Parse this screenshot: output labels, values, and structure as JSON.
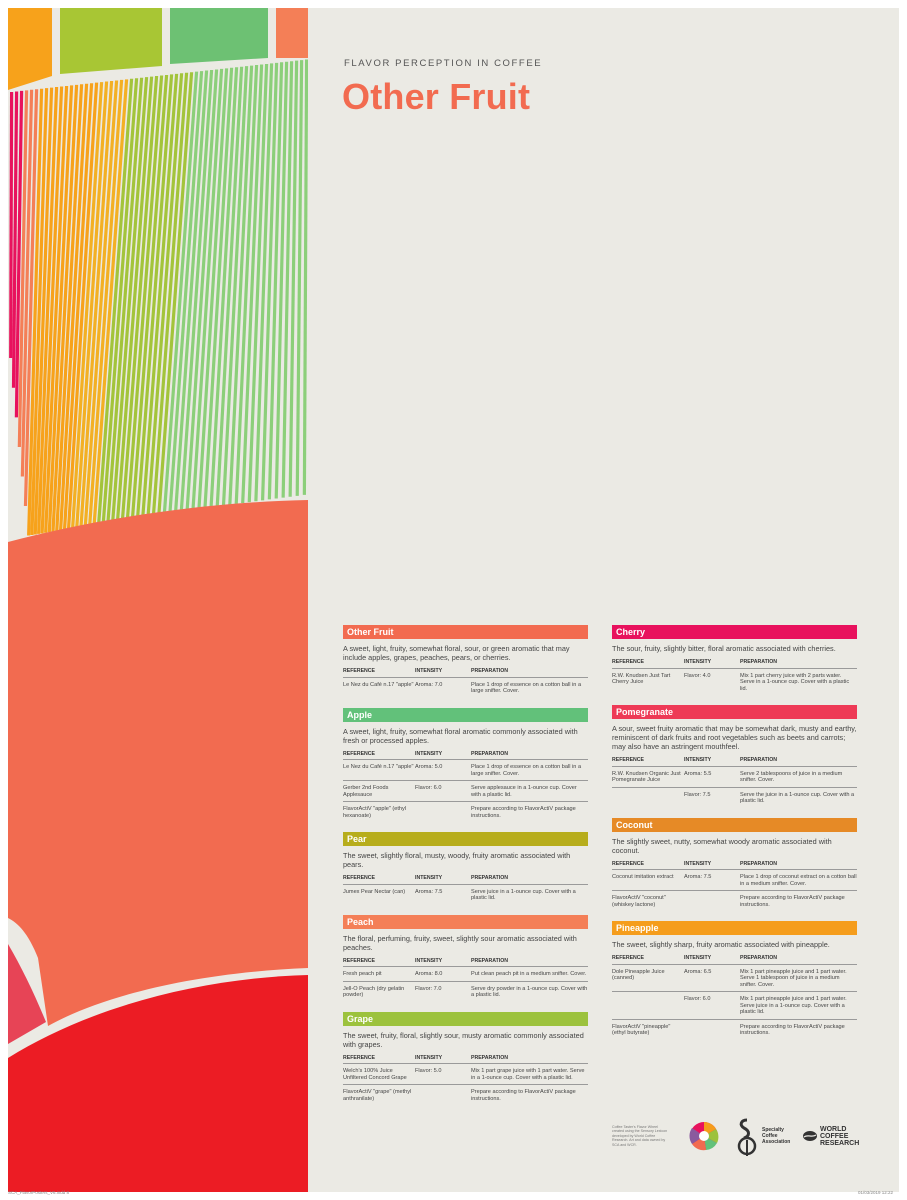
{
  "header": {
    "eyebrow": "FLAVOR PERCEPTION IN COFFEE",
    "title": "Other Fruit"
  },
  "table_headers": {
    "reference": "REFERENCE",
    "intensity": "INTENSITY",
    "preparation": "PREPARATION"
  },
  "colors": {
    "page_bg": "#ebeae4",
    "title": "#f26b50",
    "other_fruit": "#f26b50",
    "apple": "#62c17a",
    "pear": "#b7ad1c",
    "peach": "#f47f57",
    "grape": "#9cc23d",
    "cherry": "#e8125d",
    "pomegranate": "#ee3a56",
    "coconut": "#e68a26",
    "pineapple": "#f59d1c"
  },
  "left_cards": [
    {
      "name": "Other Fruit",
      "color": "#f26b50",
      "description": "A sweet, light, fruity, somewhat floral, sour, or green aromatic that may include apples, grapes, peaches, pears, or cherries.",
      "rows": [
        {
          "reference": "Le Nez du Café n.17 \"apple\"",
          "intensity": "Aroma: 7.0",
          "preparation": "Place 1 drop of essence on a cotton ball in a large snifter. Cover."
        }
      ]
    },
    {
      "name": "Apple",
      "color": "#62c17a",
      "description": "A sweet, light, fruity, somewhat floral aromatic commonly associated with fresh or processed apples.",
      "rows": [
        {
          "reference": "Le Nez du Café n.17 \"apple\"",
          "intensity": "Aroma: 5.0",
          "preparation": "Place 1 drop of essence on a cotton ball in a large snifter. Cover."
        },
        {
          "reference": "Gerber 2nd Foods Applesauce",
          "intensity": "Flavor: 6.0",
          "preparation": "Serve applesauce in a 1-ounce cup. Cover with a plastic lid."
        },
        {
          "reference": "FlavorActiV \"apple\" (ethyl hexanoate)",
          "intensity": "",
          "preparation": "Prepare according to FlavorActiV package instructions."
        }
      ]
    },
    {
      "name": "Pear",
      "color": "#b7ad1c",
      "description": "The sweet, slightly floral, musty, woody, fruity aromatic associated with pears.",
      "rows": [
        {
          "reference": "Jumex Pear Nectar (can)",
          "intensity": "Aroma: 7.5",
          "preparation": "Serve juice in a 1-ounce cup. Cover with a plastic lid."
        }
      ]
    },
    {
      "name": "Peach",
      "color": "#f47f57",
      "description": "The floral, perfuming, fruity, sweet, slightly sour aromatic associated with peaches.",
      "rows": [
        {
          "reference": "Fresh peach pit",
          "intensity": "Aroma: 8.0",
          "preparation": "Put clean peach pit in a medium snifter. Cover."
        },
        {
          "reference": "Jell-O Peach (dry gelatin powder)",
          "intensity": "Flavor: 7.0",
          "preparation": "Serve dry powder in a 1-ounce cup. Cover with a plastic lid."
        }
      ]
    },
    {
      "name": "Grape",
      "color": "#9cc23d",
      "description": "The sweet, fruity, floral, slightly sour, musty aromatic commonly associated with grapes.",
      "rows": [
        {
          "reference": "Welch's 100% Juice Unfiltered Concord Grape",
          "intensity": "Flavor: 5.0",
          "preparation": "Mix 1 part grape juice with 1 part water. Serve in a 1-ounce cup. Cover with a plastic lid."
        },
        {
          "reference": "FlavorActiV \"grape\" (methyl anthranilate)",
          "intensity": "",
          "preparation": "Prepare according to FlavorActiV package instructions."
        }
      ]
    }
  ],
  "right_cards": [
    {
      "name": "Cherry",
      "color": "#e8125d",
      "description": "The sour, fruity, slightly bitter, floral aromatic associated with cherries.",
      "rows": [
        {
          "reference": "R.W. Knudsen Just Tart Cherry Juice",
          "intensity": "Flavor: 4.0",
          "preparation": "Mix 1 part cherry juice with 2 parts water. Serve in a 1-ounce cup. Cover with a plastic lid."
        }
      ]
    },
    {
      "name": "Pomegranate",
      "color": "#ee3a56",
      "description": "A sour, sweet fruity aromatic that may be somewhat dark, musty and earthy, reminiscent of dark fruits and root vegetables such as beets and carrots; may also have an astringent mouthfeel.",
      "rows": [
        {
          "reference": "R.W. Knudsen Organic Just Pomegranate Juice",
          "intensity": "Aroma: 5.5",
          "preparation": "Serve 2 tablespoons of juice in a medium snifter. Cover."
        },
        {
          "reference": "",
          "intensity": "Flavor: 7.5",
          "preparation": "Serve the juice in a 1-ounce cup. Cover with a plastic lid."
        }
      ]
    },
    {
      "name": "Coconut",
      "color": "#e68a26",
      "description": "The slightly sweet, nutty, somewhat woody aromatic associated with coconut.",
      "rows": [
        {
          "reference": "Coconut imitation extract",
          "intensity": "Aroma: 7.5",
          "preparation": "Place 1 drop of coconut extract on a cotton ball in a medium snifter. Cover."
        },
        {
          "reference": "FlavorActiV \"coconut\" (whiskey lactone)",
          "intensity": "",
          "preparation": "Prepare according to FlavorActiV package instructions."
        }
      ]
    },
    {
      "name": "Pineapple",
      "color": "#f59d1c",
      "description": "The sweet, slightly sharp, fruity aromatic associated with pineapple.",
      "rows": [
        {
          "reference": "Dole Pineapple Juice (canned)",
          "intensity": "Aroma: 6.5",
          "preparation": "Mix 1 part pineapple juice and 1 part water. Serve 1 tablespoon of juice in a medium snifter. Cover."
        },
        {
          "reference": "",
          "intensity": "Flavor: 6.0",
          "preparation": "Mix 1 part pineapple juice and 1 part water. Serve juice in a 1-ounce cup. Cover with a plastic lid."
        },
        {
          "reference": "FlavorActiV \"pineapple\" (ethyl butyrate)",
          "intensity": "",
          "preparation": "Prepare according to FlavorActiV package instructions."
        }
      ]
    }
  ],
  "footer": {
    "credit": "Coffee Taster's Flavor Wheel created using the Sensory Lexicon developed by World Coffee Research. Art and data owned by SCA and WCR.",
    "sca_line1": "Specialty",
    "sca_line2": "Coffee",
    "sca_line3": "Association",
    "wcr_line1": "WORLD",
    "wcr_line2": "COFFEE",
    "wcr_line3": "RESEARCH"
  },
  "print_marks": {
    "file_info": "SCA_FlavorPosters_V6.indd   8",
    "date_info": "01/03/2019   12:22"
  }
}
